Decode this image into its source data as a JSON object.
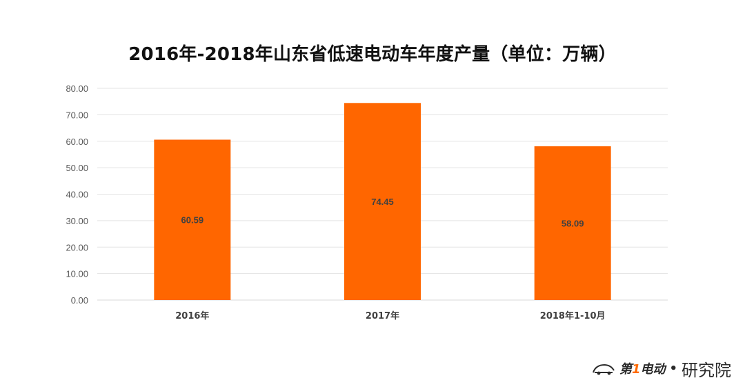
{
  "chart_data": {
    "type": "bar",
    "title": "2016年-2018年山东省低速电动车年度产量（单位：万辆）",
    "categories": [
      "2016年",
      "2017年",
      "2018年1-10月"
    ],
    "values": [
      60.59,
      74.45,
      58.09
    ],
    "data_labels": [
      "60.59",
      "74.45",
      "58.09"
    ],
    "y_ticks": [
      "0.00",
      "10.00",
      "20.00",
      "30.00",
      "40.00",
      "50.00",
      "60.00",
      "70.00",
      "80.00"
    ],
    "ylim": [
      0,
      80
    ],
    "xlabel": "",
    "ylabel": "",
    "grid": true,
    "legend": "none",
    "bar_color": "#ff6600"
  },
  "watermark": {
    "brand_prefix": "第",
    "brand_one": "1",
    "brand_suffix": "电动",
    "separator": "•",
    "sub": "研究院"
  }
}
